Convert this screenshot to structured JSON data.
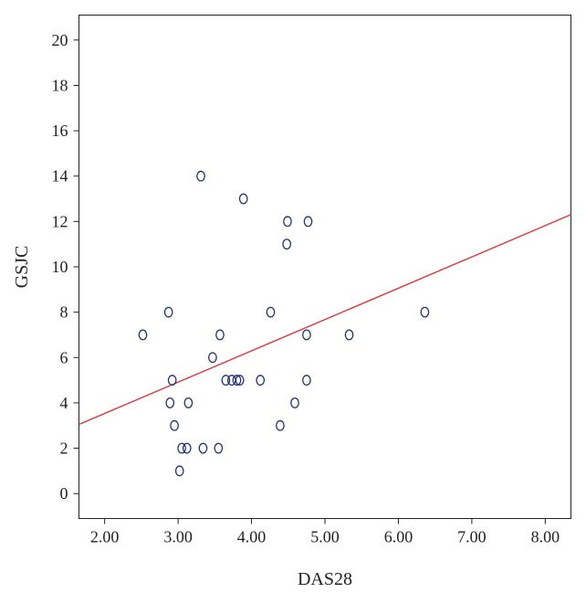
{
  "chart_data": {
    "type": "scatter",
    "title": "",
    "xlabel": "DAS28",
    "ylabel": "GSJC",
    "xlim": [
      1.65,
      8.35
    ],
    "ylim": [
      -1.1,
      21.1
    ],
    "grid": false,
    "x_ticks": [
      "2.00",
      "3.00",
      "4.00",
      "5.00",
      "6.00",
      "7.00",
      "8.00"
    ],
    "y_ticks": [
      "0",
      "2",
      "4",
      "6",
      "8",
      "10",
      "12",
      "14",
      "16",
      "18",
      "20"
    ],
    "points": [
      {
        "x": 2.52,
        "y": 7
      },
      {
        "x": 2.87,
        "y": 8
      },
      {
        "x": 2.89,
        "y": 4
      },
      {
        "x": 2.92,
        "y": 5
      },
      {
        "x": 2.95,
        "y": 3
      },
      {
        "x": 3.02,
        "y": 1
      },
      {
        "x": 3.05,
        "y": 2
      },
      {
        "x": 3.12,
        "y": 2
      },
      {
        "x": 3.14,
        "y": 4
      },
      {
        "x": 3.31,
        "y": 14
      },
      {
        "x": 3.34,
        "y": 2
      },
      {
        "x": 3.47,
        "y": 6
      },
      {
        "x": 3.55,
        "y": 2
      },
      {
        "x": 3.57,
        "y": 7
      },
      {
        "x": 3.65,
        "y": 5
      },
      {
        "x": 3.73,
        "y": 5
      },
      {
        "x": 3.8,
        "y": 5
      },
      {
        "x": 3.84,
        "y": 5
      },
      {
        "x": 3.89,
        "y": 13
      },
      {
        "x": 4.12,
        "y": 5
      },
      {
        "x": 4.26,
        "y": 8
      },
      {
        "x": 4.39,
        "y": 3
      },
      {
        "x": 4.48,
        "y": 11
      },
      {
        "x": 4.49,
        "y": 12
      },
      {
        "x": 4.59,
        "y": 4
      },
      {
        "x": 4.75,
        "y": 7
      },
      {
        "x": 4.75,
        "y": 5
      },
      {
        "x": 4.77,
        "y": 12
      },
      {
        "x": 5.33,
        "y": 7
      },
      {
        "x": 6.36,
        "y": 8
      }
    ],
    "fit_line": {
      "x": [
        1.65,
        8.35
      ],
      "y": [
        3.05,
        12.3
      ],
      "color": "#e8333a"
    },
    "marker_color": "#1f2f7a"
  }
}
